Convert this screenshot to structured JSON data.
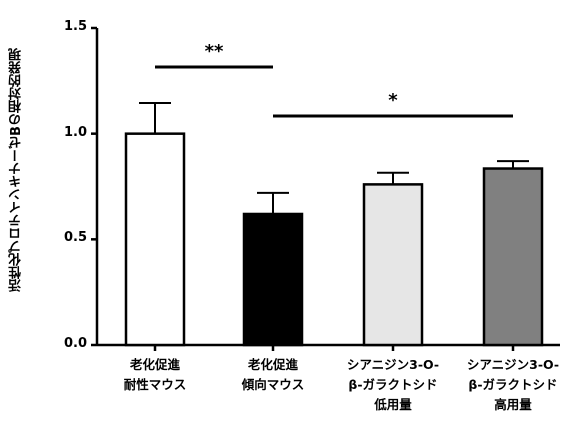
{
  "chart_data": {
    "type": "bar",
    "ylabel": "活性化プロテインキナーゼBの相対的発現",
    "ylim": [
      0,
      1.5
    ],
    "yticks": [
      "0.0",
      "0.5",
      "1.0",
      "1.5"
    ],
    "categories": [
      [
        "老化促進",
        "耐性マウス"
      ],
      [
        "老化促進",
        "傾向マウス"
      ],
      [
        "シアニジン3-O-",
        "β-ガラクトシド",
        "低用量"
      ],
      [
        "シアニジン3-O-",
        "β-ガラクトシド",
        "高用量"
      ]
    ],
    "values": [
      1.0,
      0.62,
      0.76,
      0.835
    ],
    "errors": [
      0.145,
      0.1,
      0.055,
      0.035
    ],
    "colors": [
      "#ffffff",
      "#000000",
      "#e6e6e6",
      "#808080"
    ],
    "significance": [
      {
        "label": "**",
        "from": 0,
        "to": 1
      },
      {
        "label": "*",
        "from": 1,
        "to": 3
      }
    ]
  }
}
